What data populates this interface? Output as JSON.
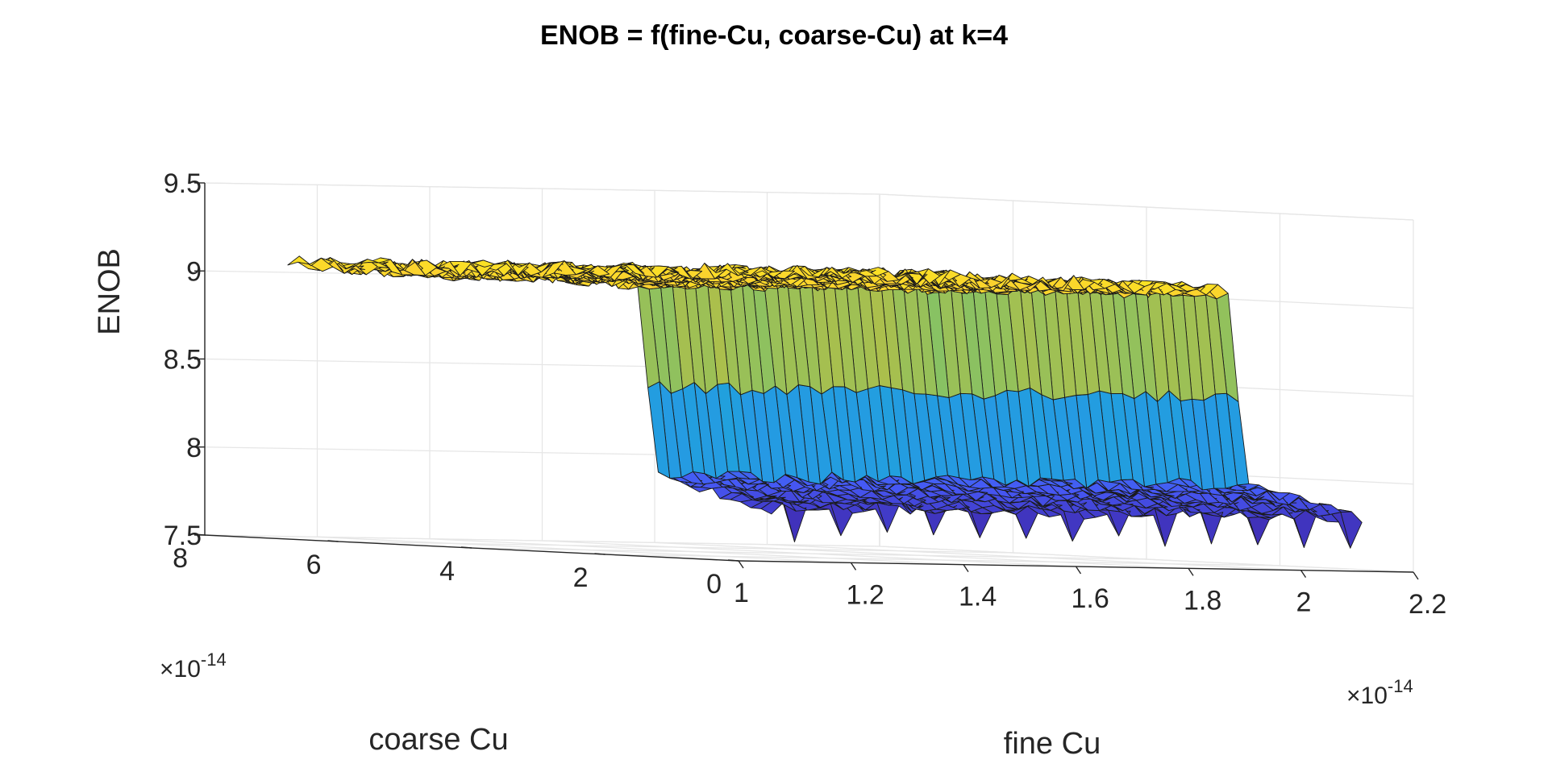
{
  "chart_data": {
    "type": "surface",
    "title": "ENOB = f(fine-Cu, coarse-Cu) at k=4",
    "xlabel": "fine Cu",
    "ylabel": "coarse Cu",
    "zlabel": "ENOB",
    "x_exponent": "×10",
    "x_exponent_power": "-14",
    "y_exponent": "×10",
    "y_exponent_power": "-14",
    "xlim": [
      1.0,
      2.2
    ],
    "ylim": [
      0,
      8
    ],
    "zlim": [
      7.5,
      9.5
    ],
    "x_ticks": [
      1.0,
      1.2,
      1.4,
      1.6,
      1.8,
      2.0,
      2.2
    ],
    "x_tick_labels": [
      "1",
      "1.2",
      "1.4",
      "1.6",
      "1.8",
      "2",
      "2.2"
    ],
    "y_ticks": [
      0,
      2,
      4,
      6,
      8
    ],
    "y_tick_labels": [
      "0",
      "2",
      "4",
      "6",
      "8"
    ],
    "z_ticks": [
      7.5,
      8.0,
      8.5,
      9.0,
      9.5
    ],
    "z_tick_labels": [
      "7.5",
      "8",
      "8.5",
      "9",
      "9.5"
    ],
    "grid": true,
    "colormap": "parula",
    "surface": {
      "x_range": [
        1.1,
        2.15
      ],
      "y_range": [
        0.35,
        7.6
      ],
      "high_plateau_enob": 9.05,
      "low_plateau_enob": 7.8,
      "step_enob": 8.45,
      "transition_coarse_cu": 2.3,
      "noise_amplitude": 0.05
    }
  }
}
